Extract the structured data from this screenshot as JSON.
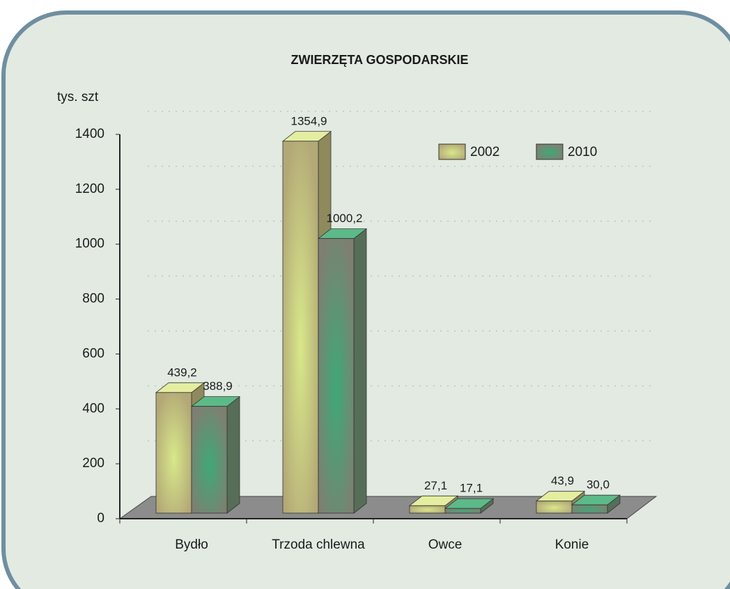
{
  "chart_data": {
    "type": "bar3d",
    "title": "ZWIERZĘTA GOSPODARSKIE",
    "y_label": "tys. szt",
    "categories": [
      "Bydło",
      "Trzoda chlewna",
      "Owce",
      "Konie"
    ],
    "series": [
      {
        "name": "2002",
        "color": "#d6e48a",
        "values": [
          439.2,
          1354.9,
          27.1,
          43.9
        ],
        "value_labels": [
          "439,2",
          "1354,9",
          "27,1",
          "43,9"
        ]
      },
      {
        "name": "2010",
        "color": "#4ea678",
        "values": [
          388.9,
          1000.2,
          17.1,
          30.0
        ],
        "value_labels": [
          "388,9",
          "1000,2",
          "17,1",
          "30,0"
        ]
      }
    ],
    "ylim": [
      0,
      1400
    ],
    "yticks": [
      0,
      200,
      400,
      600,
      800,
      1000,
      1200,
      1400
    ],
    "grid": true,
    "legend": "upper right"
  }
}
